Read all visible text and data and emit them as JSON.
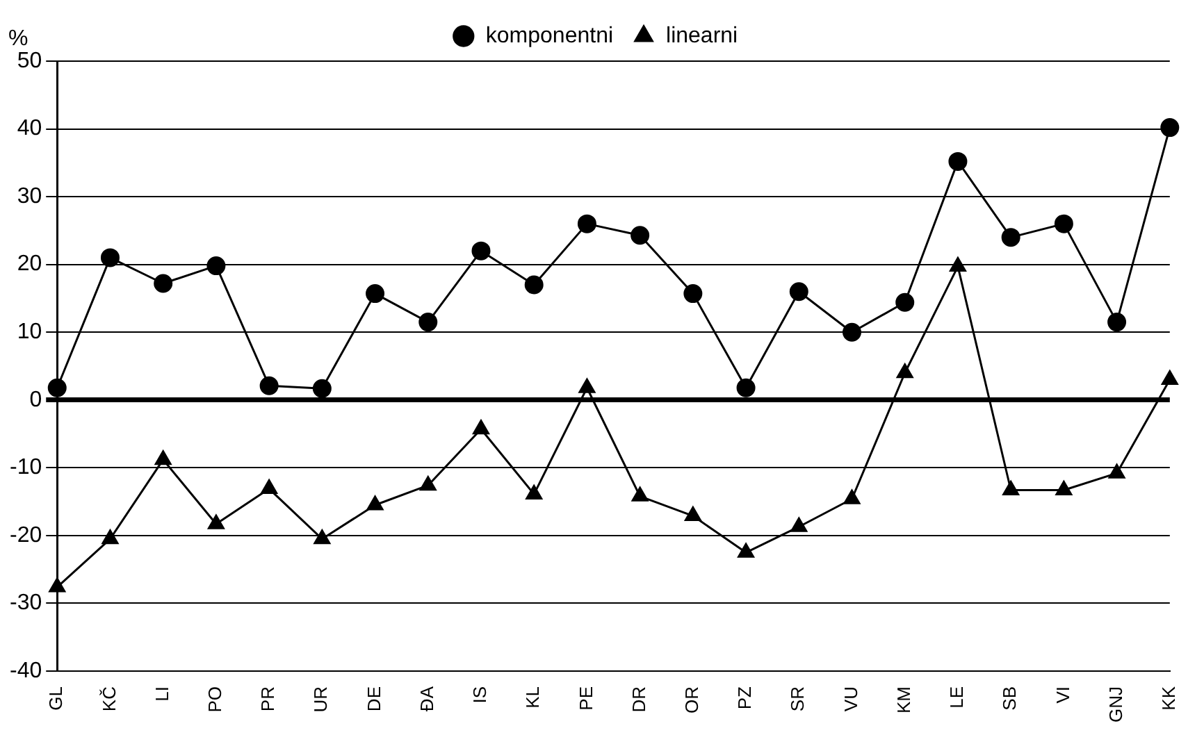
{
  "chart_data": {
    "type": "line",
    "ylabel": "%",
    "categories": [
      "GL",
      "KČ",
      "LI",
      "PO",
      "PR",
      "UR",
      "DE",
      "ĐA",
      "IS",
      "KL",
      "PE",
      "DR",
      "OR",
      "PZ",
      "SR",
      "VU",
      "KM",
      "LE",
      "SB",
      "VI",
      "GNJ",
      "KK"
    ],
    "series": [
      {
        "name": "komponentni",
        "color": "#000000",
        "marker": "circle",
        "values": [
          1.8,
          21,
          17.2,
          19.8,
          2.1,
          1.7,
          15.7,
          11.5,
          22,
          17,
          26,
          24.3,
          15.7,
          1.8,
          16,
          10,
          14.4,
          35.2,
          24,
          26,
          11.5,
          40.2
        ]
      },
      {
        "name": "linearni",
        "color": "#000000",
        "marker": "triangle",
        "values": [
          -27.6,
          -20.5,
          -8.8,
          -18.3,
          -13.1,
          -20.5,
          -15.5,
          -12.6,
          -4.3,
          -13.9,
          1.8,
          -14.2,
          -17.1,
          -22.5,
          -18.7,
          -14.6,
          4,
          19.7,
          -13.3,
          -13.3,
          -10.8,
          3
        ]
      }
    ],
    "ylim": [
      -40,
      50
    ],
    "yticks": [
      -40,
      -30,
      -20,
      -10,
      0,
      10,
      20,
      30,
      40,
      50
    ],
    "grid": "y",
    "legend": "top",
    "line_style": "solid"
  }
}
